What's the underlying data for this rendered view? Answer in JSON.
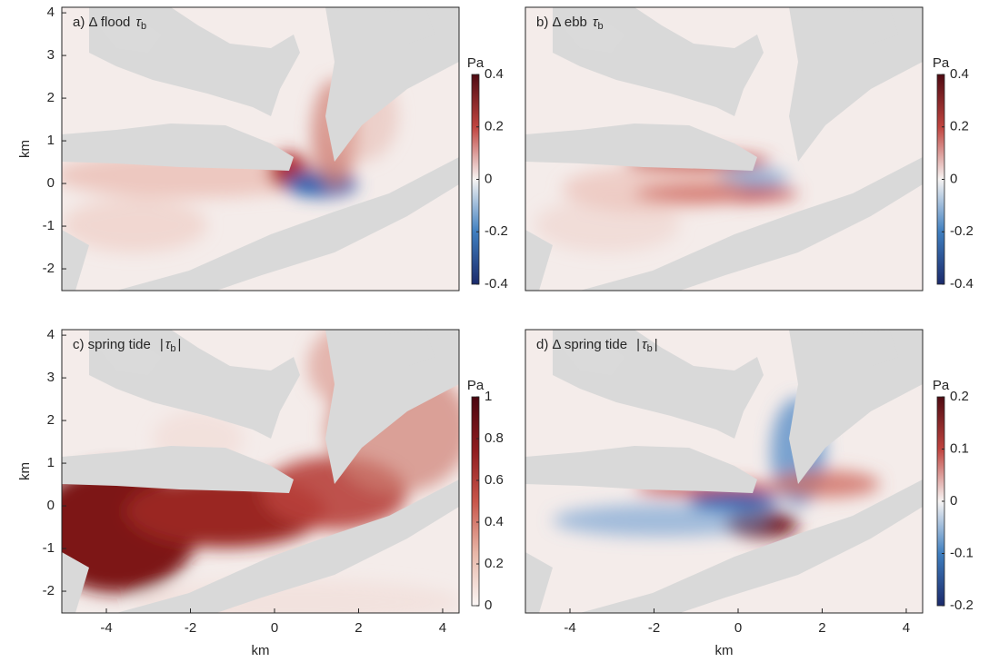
{
  "chart_data": [
    {
      "type": "heatmap",
      "title": {
        "text": "a)  Δ  flood",
        "symbol": "τ",
        "sub": "b"
      },
      "ylabel": "km",
      "xlim": [
        -5.06,
        4.39
      ],
      "ylim": [
        -2.51,
        4.13
      ],
      "yticks": [
        -2,
        -1,
        0,
        1,
        2,
        3,
        4
      ],
      "colorbar": {
        "label": "Pa",
        "lim": [
          -0.4,
          0.4
        ],
        "ticks": [
          -0.4,
          -0.2,
          0,
          0.2,
          0.4
        ],
        "colors": [
          "#1b2a6b",
          "#3f7fc0",
          "#f7f4f3",
          "#c0443f",
          "#4f0a12"
        ]
      }
    },
    {
      "type": "heatmap",
      "title": {
        "text": "b)  Δ  ebb",
        "symbol": "τ",
        "sub": "b"
      },
      "xlim": [
        -5.06,
        4.39
      ],
      "ylim": [
        -2.51,
        4.13
      ],
      "colorbar": {
        "label": "Pa",
        "lim": [
          -0.4,
          0.4
        ],
        "ticks": [
          -0.4,
          -0.2,
          0,
          0.2,
          0.4
        ],
        "colors": [
          "#1b2a6b",
          "#3f7fc0",
          "#f7f4f3",
          "#c0443f",
          "#4f0a12"
        ]
      }
    },
    {
      "type": "heatmap",
      "title": {
        "text": "c)  spring  tide",
        "open": "|",
        "symbol": "τ",
        "sub": "b",
        "close": "|"
      },
      "xlabel": "km",
      "ylabel": "km",
      "xlim": [
        -5.06,
        4.39
      ],
      "ylim": [
        -2.51,
        4.13
      ],
      "xticks": [
        -4,
        -2,
        0,
        2,
        4
      ],
      "yticks": [
        -2,
        -1,
        0,
        1,
        2,
        3,
        4
      ],
      "colorbar": {
        "label": "Pa",
        "lim": [
          0,
          1
        ],
        "ticks": [
          0,
          0.2,
          0.4,
          0.6,
          0.8,
          1
        ],
        "colors": [
          "#fbf7f6",
          "#e8b7a8",
          "#c8554a",
          "#8e1b1e",
          "#4a0610"
        ]
      }
    },
    {
      "type": "heatmap",
      "title": {
        "text": "d)  Δ  spring  tide",
        "open": "|",
        "symbol": "τ",
        "sub": "b",
        "close": "|"
      },
      "xlabel": "km",
      "xlim": [
        -5.06,
        4.39
      ],
      "ylim": [
        -2.51,
        4.13
      ],
      "xticks": [
        -4,
        -2,
        0,
        2,
        4
      ],
      "colorbar": {
        "label": "Pa",
        "lim": [
          -0.2,
          0.2
        ],
        "ticks": [
          -0.2,
          -0.1,
          0,
          0.1,
          0.2
        ],
        "colors": [
          "#1b2a6b",
          "#3f7fc0",
          "#f7f4f3",
          "#c0443f",
          "#4f0a12"
        ]
      }
    }
  ]
}
